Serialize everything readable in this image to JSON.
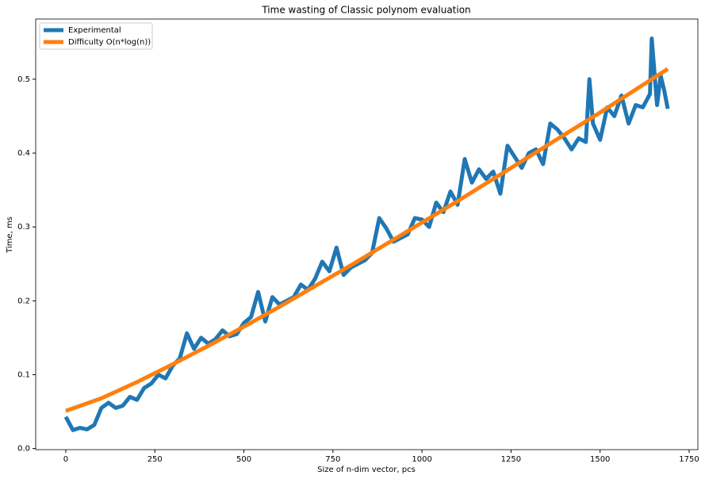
{
  "chart_data": {
    "type": "line",
    "title": "Time wasting of Classic polynom evaluation",
    "x_label": "Size of n-dim vector, pcs",
    "y_label": "Time, ms",
    "legend": "upper left",
    "xlim": [
      -84.5,
      1774.5
    ],
    "ylim": [
      -0.0015,
      0.5815
    ],
    "xticks": [
      0,
      250,
      500,
      750,
      1000,
      1250,
      1500,
      1750
    ],
    "yticks": [
      {
        "value": 0,
        "label": "0.0"
      },
      {
        "value": 0.1,
        "label": "0.1"
      },
      {
        "value": 0.2,
        "label": "0.2"
      },
      {
        "value": 0.3,
        "label": "0.3"
      },
      {
        "value": 0.4,
        "label": "0.4"
      },
      {
        "value": 0.5,
        "label": "0.5"
      }
    ],
    "series": [
      {
        "name": "Experimental",
        "color": "#1f77b4",
        "x": [
          0,
          20,
          40,
          60,
          80,
          100,
          120,
          140,
          160,
          180,
          200,
          220,
          240,
          260,
          280,
          300,
          320,
          340,
          360,
          380,
          400,
          420,
          440,
          460,
          480,
          500,
          520,
          540,
          560,
          580,
          600,
          620,
          640,
          660,
          680,
          700,
          720,
          740,
          760,
          780,
          800,
          820,
          840,
          860,
          880,
          900,
          920,
          940,
          960,
          980,
          1000,
          1020,
          1040,
          1060,
          1080,
          1100,
          1120,
          1140,
          1160,
          1180,
          1200,
          1220,
          1240,
          1260,
          1280,
          1300,
          1320,
          1340,
          1360,
          1380,
          1400,
          1420,
          1440,
          1460,
          1470,
          1480,
          1500,
          1520,
          1540,
          1560,
          1580,
          1600,
          1620,
          1640,
          1645,
          1660,
          1670,
          1680,
          1690
        ],
        "values": [
          0.043,
          0.025,
          0.028,
          0.026,
          0.032,
          0.055,
          0.062,
          0.055,
          0.058,
          0.07,
          0.066,
          0.082,
          0.088,
          0.1,
          0.095,
          0.112,
          0.122,
          0.156,
          0.135,
          0.15,
          0.142,
          0.148,
          0.16,
          0.152,
          0.155,
          0.17,
          0.178,
          0.212,
          0.172,
          0.205,
          0.195,
          0.2,
          0.205,
          0.222,
          0.215,
          0.23,
          0.253,
          0.24,
          0.272,
          0.235,
          0.245,
          0.25,
          0.255,
          0.265,
          0.312,
          0.298,
          0.28,
          0.285,
          0.29,
          0.312,
          0.31,
          0.3,
          0.333,
          0.32,
          0.348,
          0.33,
          0.392,
          0.36,
          0.378,
          0.365,
          0.375,
          0.345,
          0.41,
          0.395,
          0.38,
          0.4,
          0.405,
          0.385,
          0.44,
          0.432,
          0.42,
          0.405,
          0.42,
          0.415,
          0.5,
          0.44,
          0.418,
          0.462,
          0.45,
          0.478,
          0.44,
          0.465,
          0.462,
          0.48,
          0.555,
          0.465,
          0.505,
          0.485,
          0.46
        ]
      },
      {
        "name": "Difficulty O(n*log(n))",
        "color": "#ff7f0e",
        "x": [
          0,
          100,
          200,
          300,
          400,
          500,
          600,
          700,
          800,
          900,
          1000,
          1100,
          1200,
          1300,
          1400,
          1500,
          1600,
          1690
        ],
        "values": [
          0.051,
          0.068,
          0.09,
          0.114,
          0.139,
          0.165,
          0.192,
          0.22,
          0.248,
          0.277,
          0.306,
          0.335,
          0.365,
          0.395,
          0.425,
          0.455,
          0.486,
          0.514
        ]
      }
    ]
  }
}
